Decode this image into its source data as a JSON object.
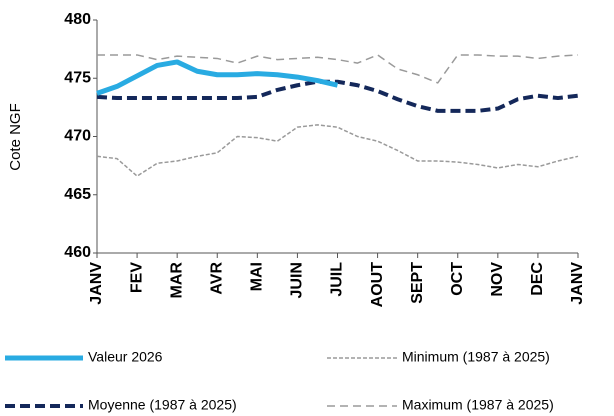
{
  "chart_data": {
    "type": "line",
    "y_label": "Cote NGF",
    "xlim": [
      0,
      12
    ],
    "xticks": [
      {
        "value": 0,
        "label": "JANV"
      },
      {
        "value": 1,
        "label": "FEV"
      },
      {
        "value": 2,
        "label": "MAR"
      },
      {
        "value": 3,
        "label": "AVR"
      },
      {
        "value": 4,
        "label": "MAI"
      },
      {
        "value": 5,
        "label": "JUIN"
      },
      {
        "value": 6,
        "label": "JUIL"
      },
      {
        "value": 7,
        "label": "AOUT"
      },
      {
        "value": 8,
        "label": "SEPT"
      },
      {
        "value": 9,
        "label": "OCT"
      },
      {
        "value": 10,
        "label": "NOV"
      },
      {
        "value": 11,
        "label": "DEC"
      },
      {
        "value": 12,
        "label": "JANV"
      }
    ],
    "ylim": [
      460,
      480
    ],
    "yticks": [
      460,
      465,
      470,
      475,
      480
    ],
    "grid": false,
    "legend": "bottom",
    "x": [
      0,
      0.5,
      1,
      1.5,
      2,
      2.5,
      3,
      3.5,
      4,
      4.5,
      5,
      5.5,
      6,
      6.5,
      7,
      7.5,
      8,
      8.5,
      9,
      9.5,
      10,
      10.5,
      11,
      11.5,
      12
    ],
    "series": [
      {
        "name": "Valeur 2026",
        "color": "#29abe2",
        "line_style": "thick",
        "values": [
          473.7,
          474.3,
          475.2,
          476.1,
          476.4,
          475.6,
          475.3,
          475.3,
          475.4,
          475.3,
          475.1,
          474.8,
          474.4,
          null,
          null,
          null,
          null,
          null,
          null,
          null,
          null,
          null,
          null,
          null,
          null
        ]
      },
      {
        "name": "Minimum (1987 à 2025)",
        "color": "#9a9a9a",
        "line_style": "short-dash",
        "values": [
          468.3,
          468.1,
          466.6,
          467.7,
          467.9,
          468.3,
          468.6,
          470.0,
          469.9,
          469.6,
          470.8,
          471.0,
          470.8,
          470.0,
          469.6,
          468.8,
          467.9,
          467.9,
          467.8,
          467.6,
          467.3,
          467.6,
          467.4,
          467.9,
          468.3
        ]
      },
      {
        "name": "Moyenne (1987 à 2025)",
        "color": "#14285a",
        "line_style": "bold-dash",
        "values": [
          473.4,
          473.3,
          473.3,
          473.3,
          473.3,
          473.3,
          473.3,
          473.3,
          473.4,
          474.0,
          474.4,
          474.7,
          474.7,
          474.4,
          473.9,
          473.2,
          472.6,
          472.2,
          472.2,
          472.2,
          472.4,
          473.2,
          473.5,
          473.3,
          473.5
        ]
      },
      {
        "name": "Maximum (1987 à 2025)",
        "color": "#9a9a9a",
        "line_style": "long-dash",
        "values": [
          477.0,
          477.0,
          477.0,
          476.6,
          476.9,
          476.8,
          476.7,
          476.3,
          476.9,
          476.6,
          476.7,
          476.8,
          476.6,
          476.3,
          477.0,
          475.8,
          475.3,
          474.6,
          477.0,
          477.0,
          476.9,
          476.9,
          476.7,
          476.9,
          477.0
        ]
      }
    ]
  }
}
